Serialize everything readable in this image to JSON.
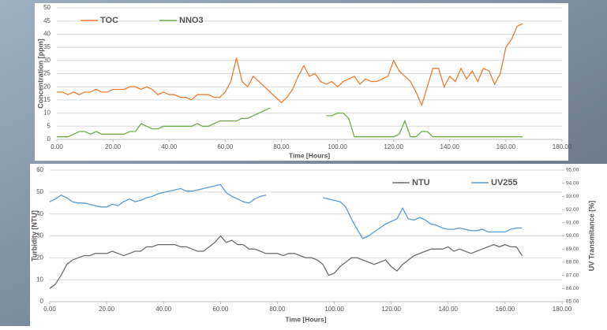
{
  "chart_data": [
    {
      "type": "line",
      "x": [
        0,
        2,
        4,
        6,
        8,
        10,
        12,
        14,
        16,
        18,
        20,
        22,
        24,
        26,
        28,
        30,
        32,
        34,
        36,
        38,
        40,
        42,
        44,
        46,
        48,
        50,
        52,
        54,
        56,
        58,
        60,
        62,
        64,
        66,
        68,
        70,
        72,
        74,
        76,
        78,
        80,
        82,
        84,
        86,
        88,
        90,
        92,
        94,
        96,
        98,
        100,
        102,
        104,
        106,
        108,
        110,
        112,
        114,
        116,
        118,
        120,
        122,
        124,
        126,
        128,
        130,
        132,
        134,
        136,
        138,
        140,
        142,
        144,
        146,
        148,
        150,
        152,
        154,
        156,
        158,
        160,
        162,
        164,
        166
      ],
      "series": [
        {
          "name": "TOC",
          "color": "#ed7d31",
          "values": [
            18,
            18,
            17,
            18,
            17,
            18,
            18,
            19,
            18,
            18,
            19,
            19,
            19,
            20,
            20,
            19,
            20,
            19,
            17,
            18,
            17,
            17,
            16,
            16,
            15,
            17,
            17,
            17,
            16,
            16,
            18,
            22,
            31,
            22,
            20,
            24,
            22,
            20,
            18,
            16,
            14,
            16,
            19,
            24,
            28,
            24,
            25,
            22,
            21,
            22,
            20,
            22,
            23,
            24,
            21,
            23,
            22,
            22,
            23,
            24,
            30,
            26,
            24,
            22,
            18,
            13,
            20,
            27,
            27,
            20,
            24,
            22,
            27,
            23,
            26,
            22,
            27,
            26,
            21,
            25,
            35,
            38,
            43,
            44
          ]
        },
        {
          "name": "NNO3",
          "color": "#70ad47",
          "values": [
            1,
            1,
            1,
            2,
            3,
            3,
            2,
            3,
            2,
            2,
            2,
            2,
            2,
            3,
            3,
            6,
            5,
            4,
            4,
            5,
            5,
            5,
            5,
            5,
            5,
            6,
            5,
            5,
            6,
            7,
            7,
            7,
            7,
            8,
            8,
            9,
            10,
            11,
            12,
            null,
            null,
            null,
            null,
            null,
            null,
            null,
            null,
            null,
            9,
            9,
            10,
            10,
            8,
            1,
            1,
            1,
            1,
            1,
            1,
            1,
            1,
            2,
            7,
            1,
            1,
            3,
            3,
            1,
            1,
            1,
            1,
            1,
            1,
            1,
            1,
            1,
            1,
            1,
            1,
            1,
            1,
            1,
            1,
            1
          ]
        }
      ],
      "xlabel": "Time [Hours]",
      "ylabel": "Concentration [ppm]",
      "xlim": [
        0,
        180
      ],
      "xticks": [
        {
          "value": 0,
          "label": "0.00"
        },
        {
          "value": 20,
          "label": "20.00"
        },
        {
          "value": 40,
          "label": "40.00"
        },
        {
          "value": 60,
          "label": "60.00"
        },
        {
          "value": 80,
          "label": "80.00"
        },
        {
          "value": 100,
          "label": "100.00"
        },
        {
          "value": 120,
          "label": "120.00"
        },
        {
          "value": 140,
          "label": "140.00"
        },
        {
          "value": 160,
          "label": "160.00"
        },
        {
          "value": 180,
          "label": "180.00"
        }
      ],
      "ylim": [
        0,
        50
      ],
      "yticks": [
        0,
        5,
        10,
        15,
        20,
        25,
        30,
        35,
        40,
        45,
        50
      ],
      "grid": true,
      "legend": "top-left"
    },
    {
      "type": "line",
      "x": [
        0,
        2,
        4,
        6,
        8,
        10,
        12,
        14,
        16,
        18,
        20,
        22,
        24,
        26,
        28,
        30,
        32,
        34,
        36,
        38,
        40,
        42,
        44,
        46,
        48,
        50,
        52,
        54,
        56,
        58,
        60,
        62,
        64,
        66,
        68,
        70,
        72,
        74,
        76,
        78,
        80,
        82,
        84,
        86,
        88,
        90,
        92,
        94,
        96,
        98,
        100,
        102,
        104,
        106,
        108,
        110,
        112,
        114,
        116,
        118,
        120,
        122,
        124,
        126,
        128,
        130,
        132,
        134,
        136,
        138,
        140,
        142,
        144,
        146,
        148,
        150,
        152,
        154,
        156,
        158,
        160,
        162,
        164,
        166
      ],
      "series": [
        {
          "name": "NTU",
          "color": "#6e6e6e",
          "values": [
            6,
            8,
            12,
            17,
            19,
            20,
            21,
            21,
            22,
            22,
            22,
            23,
            22,
            21,
            22,
            23,
            23,
            25,
            25,
            26,
            26,
            26,
            26,
            25,
            25,
            24,
            23,
            23,
            25,
            27,
            30,
            27,
            28,
            26,
            26,
            24,
            24,
            23,
            22,
            22,
            22,
            21,
            22,
            22,
            21,
            20,
            20,
            19,
            17,
            12,
            13,
            16,
            18,
            20,
            20,
            19,
            18,
            17,
            18,
            19,
            16,
            14,
            17,
            19,
            21,
            22,
            23,
            24,
            24,
            24,
            25,
            23,
            24,
            23,
            22,
            23,
            24,
            25,
            26,
            25,
            26,
            25,
            25,
            21
          ]
        },
        {
          "name": "UV255",
          "color": "#5b9bd5",
          "axis": "y2",
          "values": [
            92.6,
            92.8,
            93.1,
            92.9,
            92.6,
            92.5,
            92.5,
            92.4,
            92.3,
            92.2,
            92.2,
            92.4,
            92.3,
            92.6,
            92.8,
            92.6,
            92.7,
            92.9,
            93.0,
            93.2,
            93.3,
            93.4,
            93.5,
            93.6,
            93.4,
            93.4,
            93.5,
            93.6,
            93.7,
            93.8,
            93.9,
            93.3,
            93.0,
            92.8,
            92.6,
            92.5,
            92.8,
            93.0,
            93.1,
            null,
            null,
            null,
            null,
            null,
            null,
            null,
            null,
            null,
            92.9,
            92.8,
            92.7,
            92.6,
            92.2,
            91.3,
            90.5,
            89.8,
            90.0,
            90.3,
            90.6,
            90.9,
            91.1,
            91.3,
            92.1,
            91.3,
            91.2,
            91.4,
            91.2,
            90.9,
            90.8,
            90.6,
            90.5,
            90.5,
            90.6,
            90.5,
            90.4,
            90.4,
            90.5,
            90.3,
            90.3,
            90.3,
            90.3,
            90.5,
            90.6,
            90.6
          ]
        }
      ],
      "xlabel": "Time [Hours]",
      "ylabel": "Turbidity [NTU]",
      "y2label": "UV Transmitance [%]",
      "xlim": [
        0,
        180
      ],
      "xticks": [
        {
          "value": 0,
          "label": "0.00"
        },
        {
          "value": 20,
          "label": "20.00"
        },
        {
          "value": 40,
          "label": "40.00"
        },
        {
          "value": 60,
          "label": "60.00"
        },
        {
          "value": 80,
          "label": "80.00"
        },
        {
          "value": 100,
          "label": "100.00"
        },
        {
          "value": 120,
          "label": "120.00"
        },
        {
          "value": 140,
          "label": "140.00"
        },
        {
          "value": 160,
          "label": "160.00"
        },
        {
          "value": 180,
          "label": "180.00"
        }
      ],
      "ylim": [
        0,
        60
      ],
      "yticks": [
        0,
        10,
        20,
        30,
        40,
        50,
        60
      ],
      "y2lim": [
        85,
        95
      ],
      "y2ticks": [
        {
          "value": 85,
          "label": "85.00"
        },
        {
          "value": 86,
          "label": "86.00"
        },
        {
          "value": 87,
          "label": "87.00"
        },
        {
          "value": 88,
          "label": "88.00"
        },
        {
          "value": 89,
          "label": "89.00"
        },
        {
          "value": 90,
          "label": "90.00"
        },
        {
          "value": 91,
          "label": "91.00"
        },
        {
          "value": 92,
          "label": "92.00"
        },
        {
          "value": 93,
          "label": "93.00"
        },
        {
          "value": 94,
          "label": "94.00"
        },
        {
          "value": 95,
          "label": "95.00"
        }
      ],
      "grid": true,
      "legend": "top-right"
    }
  ]
}
